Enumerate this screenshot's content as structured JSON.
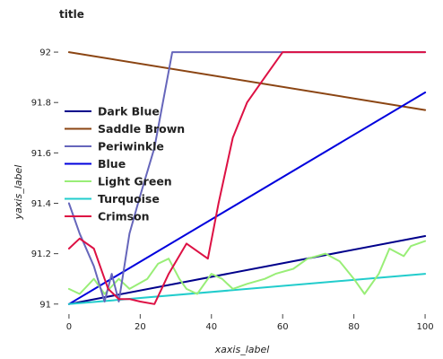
{
  "chart_data": {
    "type": "line",
    "title": "title",
    "xlabel": "xaxis_label",
    "ylabel": "yaxis_label",
    "xlim": [
      -3,
      102
    ],
    "ylim": [
      90.96,
      92.1
    ],
    "x_ticks": [
      0,
      20,
      40,
      60,
      80,
      100
    ],
    "x_tick_labels": [
      "0",
      "20",
      "40",
      "60",
      "80",
      "100"
    ],
    "y_ticks": [
      91.0,
      91.2,
      91.4,
      91.6,
      91.8,
      92.0
    ],
    "y_tick_labels": [
      "91",
      "91.2",
      "91.4",
      "91.6",
      "91.8",
      "92"
    ],
    "grid": false,
    "legend_placement": "left-inside",
    "series": [
      {
        "name": "Dark Blue",
        "color": "#00008b",
        "x": [
          0,
          100
        ],
        "y": [
          91.0,
          91.27
        ]
      },
      {
        "name": "Saddle Brown",
        "color": "#8b4513",
        "x": [
          0,
          100
        ],
        "y": [
          92.0,
          91.77
        ]
      },
      {
        "name": "Periwinkle",
        "color": "#6666bb",
        "x": [
          0,
          3,
          7,
          10,
          12,
          14,
          17,
          20,
          24,
          29,
          31,
          100
        ],
        "y": [
          91.4,
          91.28,
          91.15,
          91.01,
          91.12,
          91.01,
          91.28,
          91.43,
          91.62,
          92.0,
          92.0,
          92.0
        ]
      },
      {
        "name": "Blue",
        "color": "#0000dd",
        "x": [
          0,
          100
        ],
        "y": [
          91.0,
          91.84
        ]
      },
      {
        "name": "Light Green",
        "color": "#99ee77",
        "x": [
          0,
          3,
          7,
          10,
          14,
          17,
          22,
          25,
          28,
          31,
          33,
          36,
          40,
          43,
          46,
          50,
          55,
          58,
          63,
          67,
          72,
          76,
          80,
          83,
          87,
          90,
          94,
          96,
          100
        ],
        "y": [
          91.06,
          91.04,
          91.1,
          91.04,
          91.1,
          91.06,
          91.1,
          91.16,
          91.18,
          91.1,
          91.06,
          91.04,
          91.12,
          91.1,
          91.06,
          91.08,
          91.1,
          91.12,
          91.14,
          91.18,
          91.2,
          91.17,
          91.1,
          91.04,
          91.12,
          91.22,
          91.19,
          91.23,
          91.25
        ]
      },
      {
        "name": "Turquoise",
        "color": "#22cccc",
        "x": [
          0,
          100
        ],
        "y": [
          91.0,
          91.12
        ]
      },
      {
        "name": "Crimson",
        "color": "#dd1144",
        "x": [
          0,
          3,
          7,
          11,
          14,
          17,
          20,
          24,
          26,
          28,
          33,
          39,
          42,
          46,
          50,
          55,
          60,
          100
        ],
        "y": [
          91.22,
          91.26,
          91.22,
          91.06,
          91.02,
          91.02,
          91.01,
          91.0,
          91.06,
          91.12,
          91.24,
          91.18,
          91.4,
          91.66,
          91.8,
          91.9,
          92.0,
          92.0
        ]
      }
    ],
    "legend_order": [
      "Dark Blue",
      "Saddle Brown",
      "Periwinkle",
      "Blue",
      "Light Green",
      "Turquoise",
      "Crimson"
    ]
  }
}
